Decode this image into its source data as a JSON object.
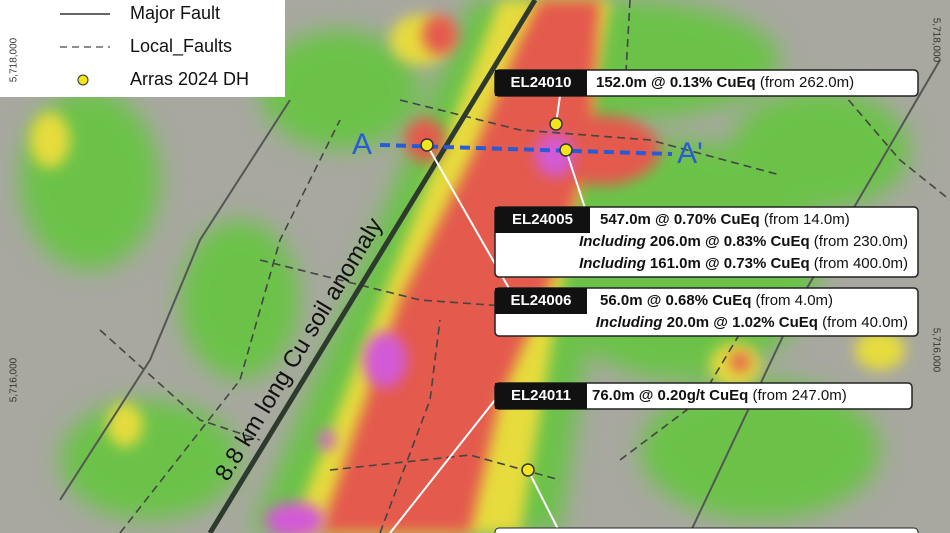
{
  "legend": [
    {
      "label": "Major Fault"
    },
    {
      "label": "Local_Faults"
    },
    {
      "label": "Arras 2024 DH"
    }
  ],
  "coordinates": {
    "left": [
      "5,718,000",
      "5,716,000"
    ],
    "right": [
      "5,718,000",
      "5,716,000"
    ]
  },
  "section": {
    "start": "A",
    "end": "A'"
  },
  "anomaly_label": "8.8 km long Cu soil anomaly",
  "callouts": [
    {
      "hole": "EL24010",
      "lines": [
        {
          "interval": "152.0m @ 0.13% CuEq",
          "from": "(from 262.0m)"
        }
      ]
    },
    {
      "hole": "EL24005",
      "lines": [
        {
          "interval": "547.0m @ 0.70% CuEq",
          "from": "(from 14.0m)"
        },
        {
          "prefix": "Including",
          "interval": "206.0m @ 0.83% CuEq",
          "from": "(from 230.0m)"
        },
        {
          "prefix": "Including",
          "interval": "161.0m @ 0.73% CuEq",
          "from": "(from 400.0m)"
        }
      ]
    },
    {
      "hole": "EL24006",
      "lines": [
        {
          "interval": "56.0m @ 0.68% CuEq",
          "from": "(from 4.0m)"
        },
        {
          "prefix": "Including",
          "interval": "20.0m @ 1.02% CuEq",
          "from": "(from 40.0m)"
        }
      ]
    },
    {
      "hole": "EL24011",
      "lines": [
        {
          "interval": "76.0m @ 0.20g/t CuEq",
          "from": "(from 247.0m)"
        }
      ]
    }
  ]
}
